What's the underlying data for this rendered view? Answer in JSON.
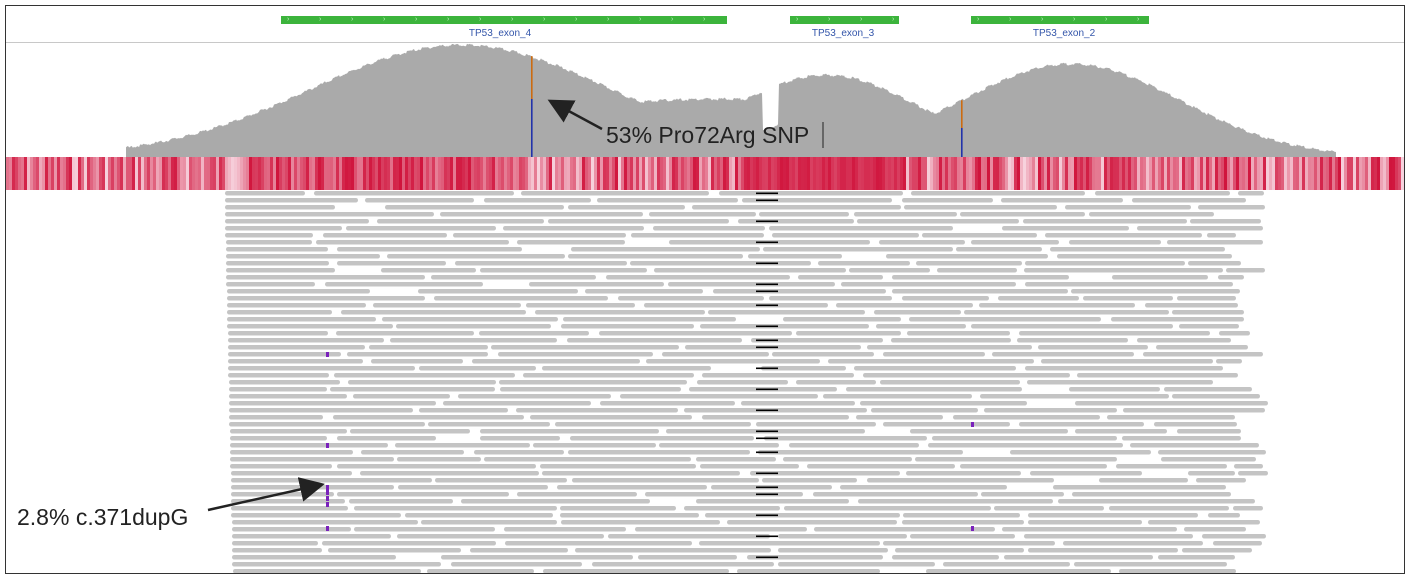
{
  "gene_track": {
    "exons": [
      {
        "label": "TP53_exon_4"
      },
      {
        "label": "TP53_exon_3"
      },
      {
        "label": "TP53_exon_2"
      }
    ]
  },
  "annotations": {
    "snp": "53% Pro72Arg SNP",
    "dup": "2.8% c.371dupG"
  },
  "colors": {
    "exon": "#3cb43c",
    "coverage": "#aaaaaa",
    "read": "#c4c4c4",
    "heat_dark": "#d0143c",
    "heat_light": "#f7d3de",
    "snp_ref": "#cc6b10",
    "snp_alt": "#2233aa",
    "insertion": "#7a22bb",
    "deletion": "#000000"
  },
  "icons": [
    "arrow-icon"
  ]
}
